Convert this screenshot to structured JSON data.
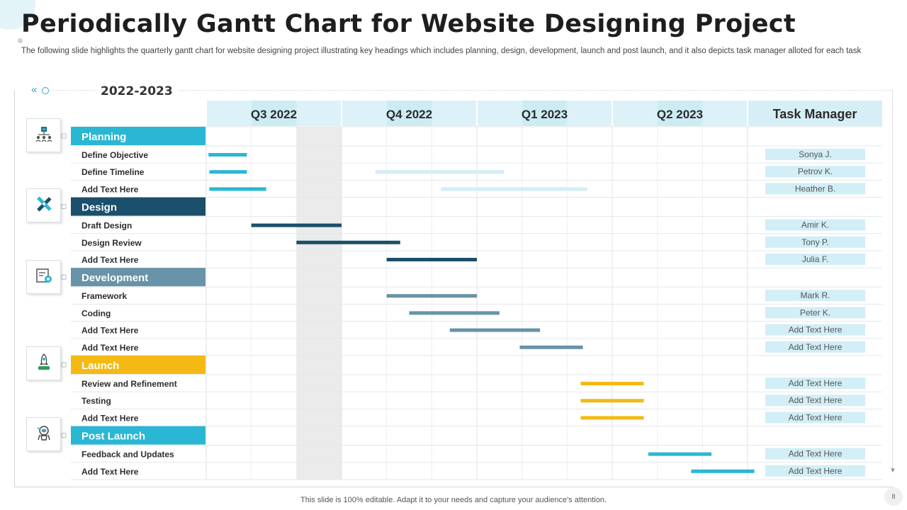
{
  "slide": {
    "title": "Periodically Gantt Chart for Website Designing Project",
    "subtitle": "The following slide highlights the quarterly gantt chart for website designing project illustrating key headings which includes planning, design, development, launch and post launch, and it also depicts task manager alloted for each task",
    "footer": "This slide is 100% editable. Adapt it to your needs and capture your audience's attention.",
    "page_number": "8"
  },
  "colors": {
    "cyan": "#2ab7d4",
    "navy": "#1b4f6b",
    "steel": "#6893a8",
    "gold": "#f5b914",
    "pale": "#d2eef6",
    "header_bg": "#d6eff6",
    "shade": "#ebebeb"
  },
  "icons": [
    "hierarchy-icon",
    "pencil-ruler-icon",
    "development-icon",
    "rocket-icon",
    "astronaut-icon"
  ],
  "chart_data": {
    "type": "gantt",
    "title": "2022-2023",
    "timeline": [
      "Q3 2022",
      "Q4 2022",
      "Q1 2023",
      "Q2 2023"
    ],
    "manager_header": "Task Manager",
    "x_unit": "month",
    "xlim": [
      0,
      12
    ],
    "phases": [
      {
        "name": "Planning",
        "color": "#2ab7d4",
        "icon": "hierarchy-icon",
        "tasks": [
          {
            "name": "Define Objective",
            "manager": "Sonya J.",
            "bars": [
              {
                "start": 0.05,
                "end": 0.9,
                "color": "#2ab7d4"
              }
            ]
          },
          {
            "name": "Define Timeline",
            "manager": "Petrov K.",
            "bars": [
              {
                "start": 0.07,
                "end": 0.9,
                "color": "#2ab7d4"
              },
              {
                "start": 3.75,
                "end": 6.6,
                "color": "#d2eef6"
              }
            ]
          },
          {
            "name": "Add Text Here",
            "manager": "Heather B.",
            "bars": [
              {
                "start": 0.07,
                "end": 1.33,
                "color": "#2ab7d4"
              },
              {
                "start": 5.2,
                "end": 8.45,
                "color": "#d2eef6"
              }
            ]
          }
        ]
      },
      {
        "name": "Design",
        "color": "#1b4f6b",
        "icon": "pencil-ruler-icon",
        "tasks": [
          {
            "name": "Draft Design",
            "manager": "Amir K.",
            "bars": [
              {
                "start": 1.0,
                "end": 3.0,
                "color": "#1b4f6b"
              }
            ]
          },
          {
            "name": "Design Review",
            "manager": "Tony P.",
            "bars": [
              {
                "start": 2.0,
                "end": 4.3,
                "color": "#1b4f6b"
              }
            ]
          },
          {
            "name": "Add Text Here",
            "manager": "Julia F.",
            "bars": [
              {
                "start": 4.0,
                "end": 6.0,
                "color": "#1b4f6b"
              }
            ]
          }
        ]
      },
      {
        "name": "Development",
        "color": "#6893a8",
        "icon": "development-icon",
        "tasks": [
          {
            "name": "Framework",
            "manager": "Mark R.",
            "bars": [
              {
                "start": 4.0,
                "end": 6.0,
                "color": "#6893a8"
              }
            ]
          },
          {
            "name": "Coding",
            "manager": "Peter K.",
            "bars": [
              {
                "start": 4.5,
                "end": 6.5,
                "color": "#6893a8"
              }
            ]
          },
          {
            "name": "Add Text Here",
            "manager": "Add Text Here",
            "bars": [
              {
                "start": 5.4,
                "end": 7.4,
                "color": "#6893a8"
              }
            ]
          },
          {
            "name": "Add Text Here",
            "manager": "Add Text Here",
            "bars": [
              {
                "start": 6.95,
                "end": 8.35,
                "color": "#6893a8"
              }
            ]
          }
        ]
      },
      {
        "name": "Launch",
        "color": "#f5b914",
        "icon": "rocket-icon",
        "tasks": [
          {
            "name": "Review and Refinement",
            "manager": "Add Text Here",
            "bars": [
              {
                "start": 8.3,
                "end": 9.7,
                "color": "#f5b914"
              }
            ]
          },
          {
            "name": "Testing",
            "manager": "Add Text Here",
            "bars": [
              {
                "start": 8.3,
                "end": 9.7,
                "color": "#f5b914"
              }
            ]
          },
          {
            "name": "Add Text Here",
            "manager": "Add Text Here",
            "bars": [
              {
                "start": 8.3,
                "end": 9.7,
                "color": "#f5b914"
              }
            ]
          }
        ]
      },
      {
        "name": "Post Launch",
        "color": "#2ab7d4",
        "icon": "astronaut-icon",
        "tasks": [
          {
            "name": "Feedback and Updates",
            "manager": "Add Text Here",
            "bars": [
              {
                "start": 9.8,
                "end": 11.2,
                "color": "#2ab7d4"
              }
            ]
          },
          {
            "name": "Add Text Here",
            "manager": "Add Text Here",
            "bars": [
              {
                "start": 10.75,
                "end": 12.15,
                "color": "#2ab7d4"
              }
            ]
          }
        ]
      }
    ],
    "highlight_range": [
      2.0,
      3.0
    ],
    "grid": true
  }
}
